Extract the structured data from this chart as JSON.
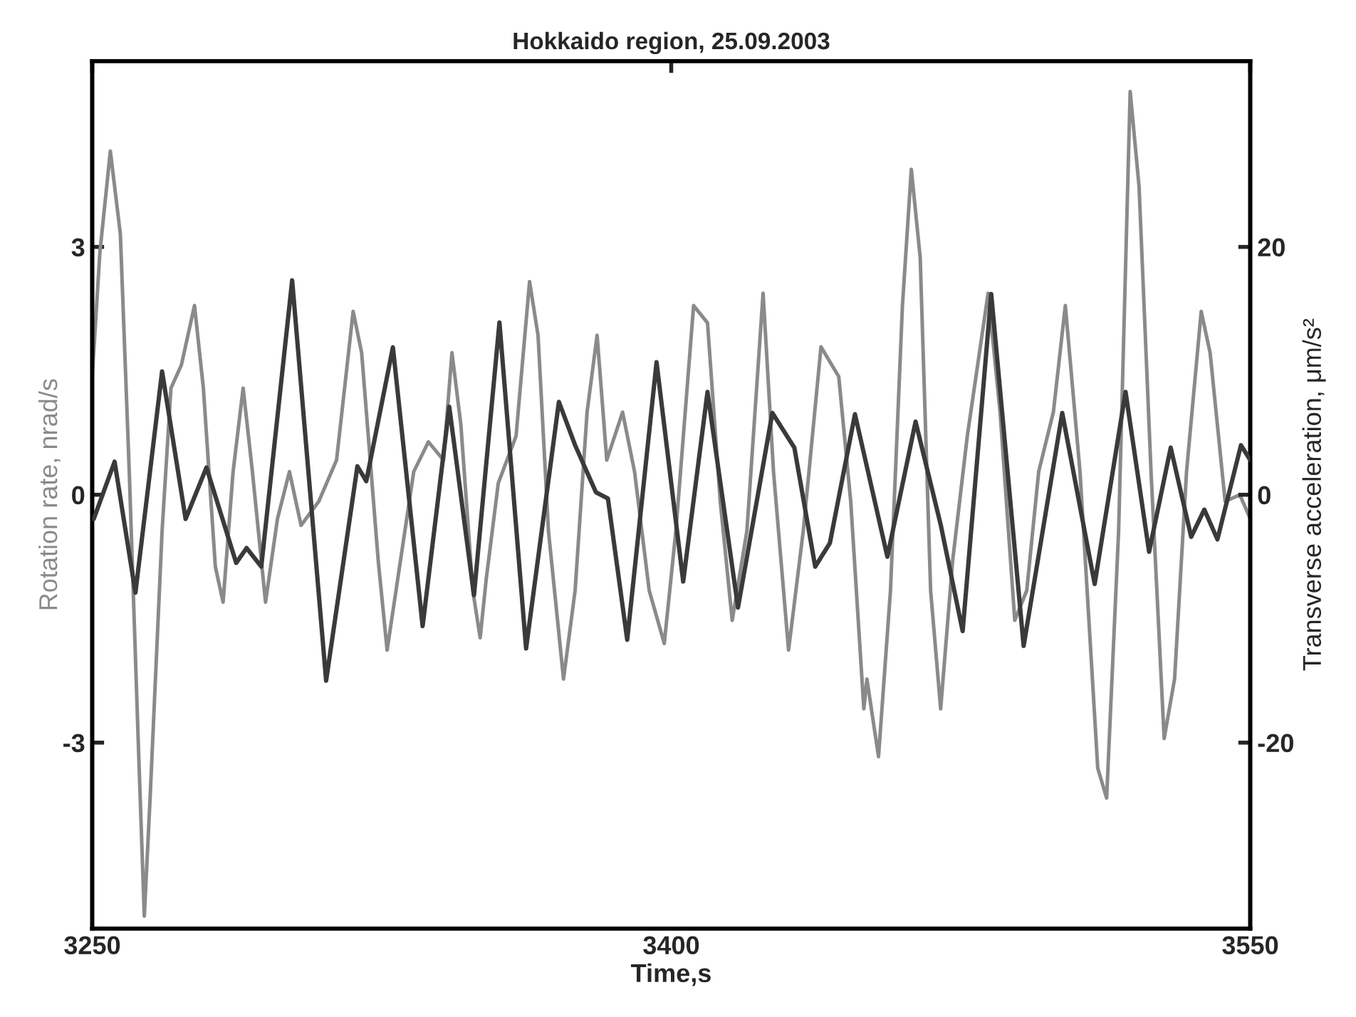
{
  "chart_data": {
    "type": "line",
    "title": "Hokkaido region, 25.09.2003",
    "xlabel": "Time,s",
    "ylabel": "Rotation rate, nrad/s",
    "y2label": "Transverse acceleration, μm/s²",
    "xlim": [
      3250,
      3550
    ],
    "xticks": [
      3250,
      3400,
      3550
    ],
    "ylim": [
      -5.25,
      5.25
    ],
    "yticks": [
      {
        "value": -3,
        "label": "-3"
      },
      0,
      3
    ],
    "y2lim": [
      -35,
      35
    ],
    "y2ticks": [
      {
        "value": -20,
        "label": "-20"
      },
      0,
      20
    ],
    "grid": false,
    "legend": false,
    "series": [
      {
        "color": "#8a8a8a",
        "x": [
          3250.0,
          3252.0,
          3254.7,
          3257.3,
          3259.6,
          3261.9,
          3263.5,
          3265.0,
          3268.1,
          3270.4,
          3273.1,
          3276.5,
          3278.8,
          3281.9,
          3283.9,
          3286.5,
          3289.1,
          3291.5,
          3294.9,
          3298.0,
          3301.1,
          3304.1,
          3308.7,
          3313.3,
          3317.6,
          3319.8,
          3324.1,
          3326.4,
          3328.7,
          3333.3,
          3337.1,
          3341.0,
          3343.2,
          3345.5,
          3348.6,
          3350.5,
          3352.1,
          3355.2,
          3359.8,
          3363.3,
          3365.5,
          3368.2,
          3372.1,
          3375.1,
          3378.2,
          3380.8,
          3383.3,
          3387.4,
          3390.5,
          3394.3,
          3398.2,
          3401.2,
          3405.8,
          3409.4,
          3412.7,
          3415.8,
          3419.6,
          3423.8,
          3426.5,
          3430.4,
          3434.2,
          3438.8,
          3443.4,
          3446.5,
          3449.9,
          3450.7,
          3453.7,
          3456.8,
          3459.9,
          3462.2,
          3464.5,
          3467.2,
          3469.8,
          3472.9,
          3476.7,
          3482.1,
          3485.2,
          3489.0,
          3492.1,
          3495.2,
          3499.0,
          3502.1,
          3505.9,
          3510.5,
          3512.8,
          3515.9,
          3518.9,
          3521.2,
          3524.3,
          3527.7,
          3530.4,
          3533.5,
          3537.3,
          3539.6,
          3543.5,
          3547.3,
          3550.0
        ],
        "values": [
          1.43,
          2.94,
          4.16,
          3.15,
          0.28,
          -2.95,
          -5.1,
          -3.67,
          -0.44,
          1.29,
          1.57,
          2.29,
          1.29,
          -0.87,
          -1.3,
          0.28,
          1.29,
          0.28,
          -1.3,
          -0.29,
          0.28,
          -0.37,
          -0.08,
          0.42,
          2.22,
          1.72,
          -0.8,
          -1.88,
          -1.16,
          0.28,
          0.64,
          0.42,
          1.72,
          0.85,
          -1.16,
          -1.73,
          -1.01,
          0.14,
          0.71,
          2.58,
          1.93,
          -0.44,
          -2.23,
          -1.16,
          1.0,
          1.93,
          0.42,
          1.0,
          0.28,
          -1.16,
          -1.8,
          -0.44,
          2.29,
          2.08,
          -0.08,
          -1.52,
          -0.44,
          2.44,
          0.28,
          -1.88,
          -0.44,
          1.79,
          1.43,
          -0.08,
          -2.59,
          -2.23,
          -3.17,
          -1.16,
          2.29,
          3.94,
          2.87,
          -1.16,
          -2.59,
          -0.8,
          0.71,
          2.44,
          1.0,
          -1.52,
          -1.16,
          0.28,
          1.0,
          2.29,
          0.28,
          -3.31,
          -3.67,
          -0.44,
          4.88,
          3.73,
          0.28,
          -2.95,
          -2.23,
          0.28,
          2.22,
          1.72,
          -0.08,
          0.0,
          -0.29
        ]
      },
      {
        "color": "#3a3a3a",
        "axis": "y2",
        "x": [
          3250.4,
          3255.8,
          3261.2,
          3268.1,
          3274.2,
          3279.6,
          3287.3,
          3290.0,
          3293.8,
          3301.8,
          3310.6,
          3318.7,
          3321.0,
          3327.9,
          3335.6,
          3342.5,
          3348.9,
          3355.5,
          3362.4,
          3370.9,
          3375.1,
          3380.5,
          3383.6,
          3388.6,
          3396.2,
          3403.1,
          3409.4,
          3417.3,
          3426.2,
          3431.9,
          3437.3,
          3441.1,
          3447.6,
          3456.0,
          3463.3,
          3469.8,
          3475.5,
          3482.9,
          3491.3,
          3501.3,
          3509.7,
          3517.7,
          3523.8,
          3529.4,
          3534.7,
          3538.1,
          3541.5,
          3547.6,
          3550.0
        ],
        "values": [
          -1.95,
          2.67,
          -7.9,
          9.95,
          -1.95,
          2.2,
          -5.5,
          -4.3,
          -5.8,
          17.3,
          -15.0,
          2.3,
          1.1,
          11.9,
          -10.6,
          7.1,
          -8.1,
          13.9,
          -12.4,
          7.5,
          4.0,
          0.2,
          -0.3,
          -11.7,
          10.7,
          -7.0,
          8.3,
          -9.1,
          6.6,
          3.8,
          -5.8,
          -3.9,
          6.5,
          -5.0,
          5.9,
          -2.4,
          -11.0,
          16.2,
          -12.2,
          6.6,
          -7.2,
          8.3,
          -4.6,
          3.8,
          -3.4,
          -1.2,
          -3.6,
          4.0,
          2.8
        ]
      }
    ]
  }
}
